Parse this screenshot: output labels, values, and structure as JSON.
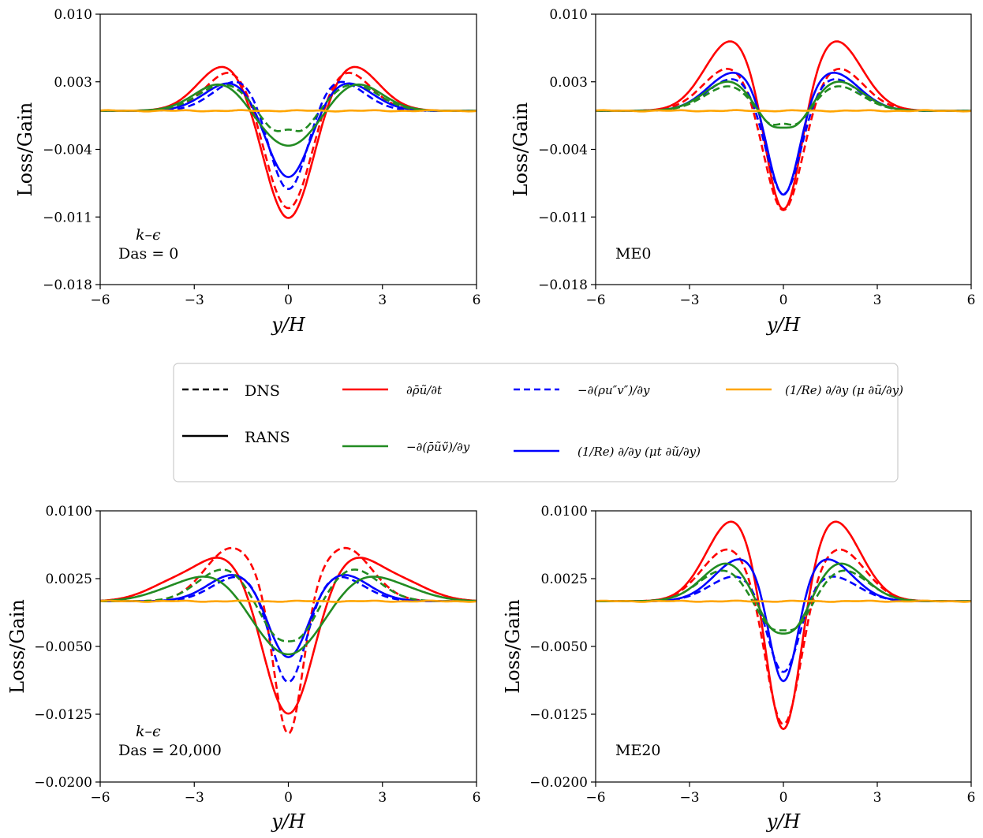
{
  "chart_data": [
    {
      "type": "line",
      "id": "ke0",
      "ylabel": "Loss/Gain",
      "xlabel": "y/H",
      "xlim": [
        -6,
        6
      ],
      "ylim": [
        -0.018,
        0.01
      ],
      "xticks": [
        -6,
        -3,
        0,
        3,
        6
      ],
      "xtick_labels": [
        "−6",
        "−3",
        "0",
        "3",
        "6"
      ],
      "yticks": [
        0.01,
        0.003,
        -0.004,
        -0.011,
        -0.018
      ],
      "ytick_labels": [
        "0.010",
        "0.003",
        "−0.004",
        "−0.011",
        "−0.018"
      ],
      "annotation": [
        "k–ϵ",
        "Da_s = 0"
      ],
      "annotation_lines": [
        "k–ϵ",
        "Das = 0"
      ],
      "series": [
        {
          "color": "#ff0000",
          "dash": true,
          "peak_x": 1.7,
          "peak": 0.0045,
          "dip": -0.0113,
          "dip_w": 0.75,
          "center_bump": 0
        },
        {
          "color": "#ff0000",
          "dash": false,
          "peak_x": 2.0,
          "peak": 0.0048,
          "dip": -0.0117,
          "dip_w": 0.75,
          "center_bump": 0
        },
        {
          "color": "#0000ff",
          "dash": true,
          "peak_x": 1.5,
          "peak": 0.0033,
          "dip": -0.0095,
          "dip_w": 0.62,
          "center_bump": 0
        },
        {
          "color": "#0000ff",
          "dash": false,
          "peak_x": 1.8,
          "peak": 0.003,
          "dip": -0.0075,
          "dip_w": 0.68,
          "center_bump": 0
        },
        {
          "color": "#228b22",
          "dash": true,
          "peak_x": 2.0,
          "peak": 0.0028,
          "dip": -0.0035,
          "dip_w": 0.75,
          "center_bump": 0.0012
        },
        {
          "color": "#228b22",
          "dash": false,
          "peak_x": 2.1,
          "peak": 0.003,
          "dip": -0.0039,
          "dip_w": 0.95,
          "center_bump": 0
        },
        {
          "color": "#ffa500",
          "dash": false,
          "peak_x": 2.0,
          "peak": 0.0,
          "dip": 0.0,
          "dip_w": 1.0,
          "center_bump": 0
        }
      ]
    },
    {
      "type": "line",
      "id": "me0",
      "ylabel": "Loss/Gain",
      "xlabel": "y/H",
      "xlim": [
        -6,
        6
      ],
      "ylim": [
        -0.018,
        0.01
      ],
      "xticks": [
        -6,
        -3,
        0,
        3,
        6
      ],
      "xtick_labels": [
        "−6",
        "−3",
        "0",
        "3",
        "6"
      ],
      "yticks": [
        0.01,
        0.003,
        -0.004,
        -0.011,
        -0.018
      ],
      "ytick_labels": [
        "0.010",
        "0.003",
        "−0.004",
        "−0.011",
        "−0.018"
      ],
      "annotation": [
        "ME0"
      ],
      "annotation_lines": [
        "ME0"
      ],
      "series": [
        {
          "color": "#ff0000",
          "dash": true,
          "peak_x": 1.7,
          "peak": 0.0045,
          "dip": -0.0115,
          "dip_w": 0.6,
          "center_bump": 0
        },
        {
          "color": "#ff0000",
          "dash": false,
          "peak_x": 1.65,
          "peak": 0.0073,
          "dip": -0.0124,
          "dip_w": 0.55,
          "center_bump": 0
        },
        {
          "color": "#0000ff",
          "dash": true,
          "peak_x": 1.55,
          "peak": 0.0034,
          "dip": -0.0099,
          "dip_w": 0.55,
          "center_bump": 0
        },
        {
          "color": "#0000ff",
          "dash": false,
          "peak_x": 1.55,
          "peak": 0.004,
          "dip": -0.0102,
          "dip_w": 0.5,
          "center_bump": 0
        },
        {
          "color": "#228b22",
          "dash": true,
          "peak_x": 1.6,
          "peak": 0.0028,
          "dip": -0.0035,
          "dip_w": 0.75,
          "center_bump": 0.0012
        },
        {
          "color": "#228b22",
          "dash": false,
          "peak_x": 1.6,
          "peak": 0.0034,
          "dip": -0.0037,
          "dip_w": 0.8,
          "center_bump": 0.0008
        },
        {
          "color": "#ffa500",
          "dash": false,
          "peak_x": 2.0,
          "peak": 0.0,
          "dip": 0.0,
          "dip_w": 1.0,
          "center_bump": 0
        }
      ]
    },
    {
      "type": "line",
      "id": "ke20",
      "ylabel": "Loss/Gain",
      "xlabel": "y/H",
      "xlim": [
        -6,
        6
      ],
      "ylim": [
        -0.02,
        0.01
      ],
      "xticks": [
        -6,
        -3,
        0,
        3,
        6
      ],
      "xtick_labels": [
        "−6",
        "−3",
        "0",
        "3",
        "6"
      ],
      "yticks": [
        0.01,
        0.0025,
        -0.005,
        -0.0125,
        -0.02
      ],
      "ytick_labels": [
        "0.0100",
        "0.0025",
        "−0.0050",
        "−0.0125",
        "−0.0200"
      ],
      "annotation": [
        "k–ϵ",
        "Da_s = 20,000"
      ],
      "annotation_lines": [
        "k–ϵ",
        "Das = 20,000"
      ],
      "series": [
        {
          "color": "#ff0000",
          "dash": true,
          "peak_x": 1.8,
          "peak": 0.0059,
          "dip": -0.0159,
          "dip_w": 0.45,
          "center_bump": 0
        },
        {
          "color": "#ff0000",
          "dash": false,
          "peak_x": 2.0,
          "peak": 0.0045,
          "dip": -0.013,
          "dip_w": 0.75,
          "center_bump": 0,
          "shoulder": 0.002
        },
        {
          "color": "#0000ff",
          "dash": true,
          "peak_x": 1.55,
          "peak": 0.0028,
          "dip": -0.01,
          "dip_w": 0.55,
          "center_bump": 0
        },
        {
          "color": "#0000ff",
          "dash": false,
          "peak_x": 1.7,
          "peak": 0.003,
          "dip": -0.007,
          "dip_w": 0.6,
          "center_bump": 0
        },
        {
          "color": "#228b22",
          "dash": true,
          "peak_x": 2.0,
          "peak": 0.0037,
          "dip": -0.0055,
          "dip_w": 0.8,
          "center_bump": 0.0006
        },
        {
          "color": "#228b22",
          "dash": false,
          "peak_x": 2.3,
          "peak": 0.0024,
          "dip": -0.006,
          "dip_w": 1.0,
          "center_bump": 0,
          "shoulder": 0.0012
        },
        {
          "color": "#ffa500",
          "dash": false,
          "peak_x": 2.0,
          "peak": 0.0,
          "dip": 0.0,
          "dip_w": 1.0,
          "center_bump": 0
        }
      ]
    },
    {
      "type": "line",
      "id": "me20",
      "ylabel": "Loss/Gain",
      "xlabel": "y/H",
      "xlim": [
        -6,
        6
      ],
      "ylim": [
        -0.02,
        0.01
      ],
      "xticks": [
        -6,
        -3,
        0,
        3,
        6
      ],
      "xtick_labels": [
        "−6",
        "−3",
        "0",
        "3",
        "6"
      ],
      "yticks": [
        0.01,
        0.0025,
        -0.005,
        -0.0125,
        -0.02
      ],
      "ytick_labels": [
        "0.0100",
        "0.0025",
        "−0.0050",
        "−0.0125",
        "−0.0200"
      ],
      "annotation": [
        "ME20"
      ],
      "annotation_lines": [
        "ME20"
      ],
      "series": [
        {
          "color": "#ff0000",
          "dash": true,
          "peak_x": 1.75,
          "peak": 0.0058,
          "dip": -0.015,
          "dip_w": 0.55,
          "center_bump": 0
        },
        {
          "color": "#ff0000",
          "dash": false,
          "peak_x": 1.6,
          "peak": 0.009,
          "dip": -0.0172,
          "dip_w": 0.55,
          "center_bump": 0
        },
        {
          "color": "#0000ff",
          "dash": true,
          "peak_x": 1.5,
          "peak": 0.0028,
          "dip": -0.009,
          "dip_w": 0.5,
          "center_bump": 0
        },
        {
          "color": "#0000ff",
          "dash": false,
          "peak_x": 1.35,
          "peak": 0.0047,
          "dip": -0.0115,
          "dip_w": 0.45,
          "center_bump": 0
        },
        {
          "color": "#228b22",
          "dash": true,
          "peak_x": 1.8,
          "peak": 0.0037,
          "dip": -0.005,
          "dip_w": 0.8,
          "center_bump": 0.001
        },
        {
          "color": "#228b22",
          "dash": false,
          "peak_x": 1.7,
          "peak": 0.0045,
          "dip": -0.0056,
          "dip_w": 0.75,
          "center_bump": 0.0008
        },
        {
          "color": "#ffa500",
          "dash": false,
          "peak_x": 2.0,
          "peak": 0.0,
          "dip": 0.0,
          "dip_w": 1.0,
          "center_bump": 0
        }
      ]
    }
  ],
  "legend": {
    "dns_label": "DNS",
    "rans_label": "RANS",
    "entries": [
      {
        "color": "#ff0000",
        "dash": false,
        "label": "∂ρ̄ũ/∂t"
      },
      {
        "color": "#228b22",
        "dash": false,
        "label": "−∂(ρ̄ũṽ)/∂y"
      },
      {
        "color": "#0000ff",
        "dash": true,
        "label": "−∂(ρu″v″)/∂y"
      },
      {
        "color": "#0000ff",
        "dash": false,
        "label": "(1/Re) ∂/∂y (μt ∂ũ/∂y)"
      },
      {
        "color": "#ffa500",
        "dash": false,
        "label": "(1/Re) ∂/∂y (μ ∂ũ/∂y)"
      }
    ]
  }
}
